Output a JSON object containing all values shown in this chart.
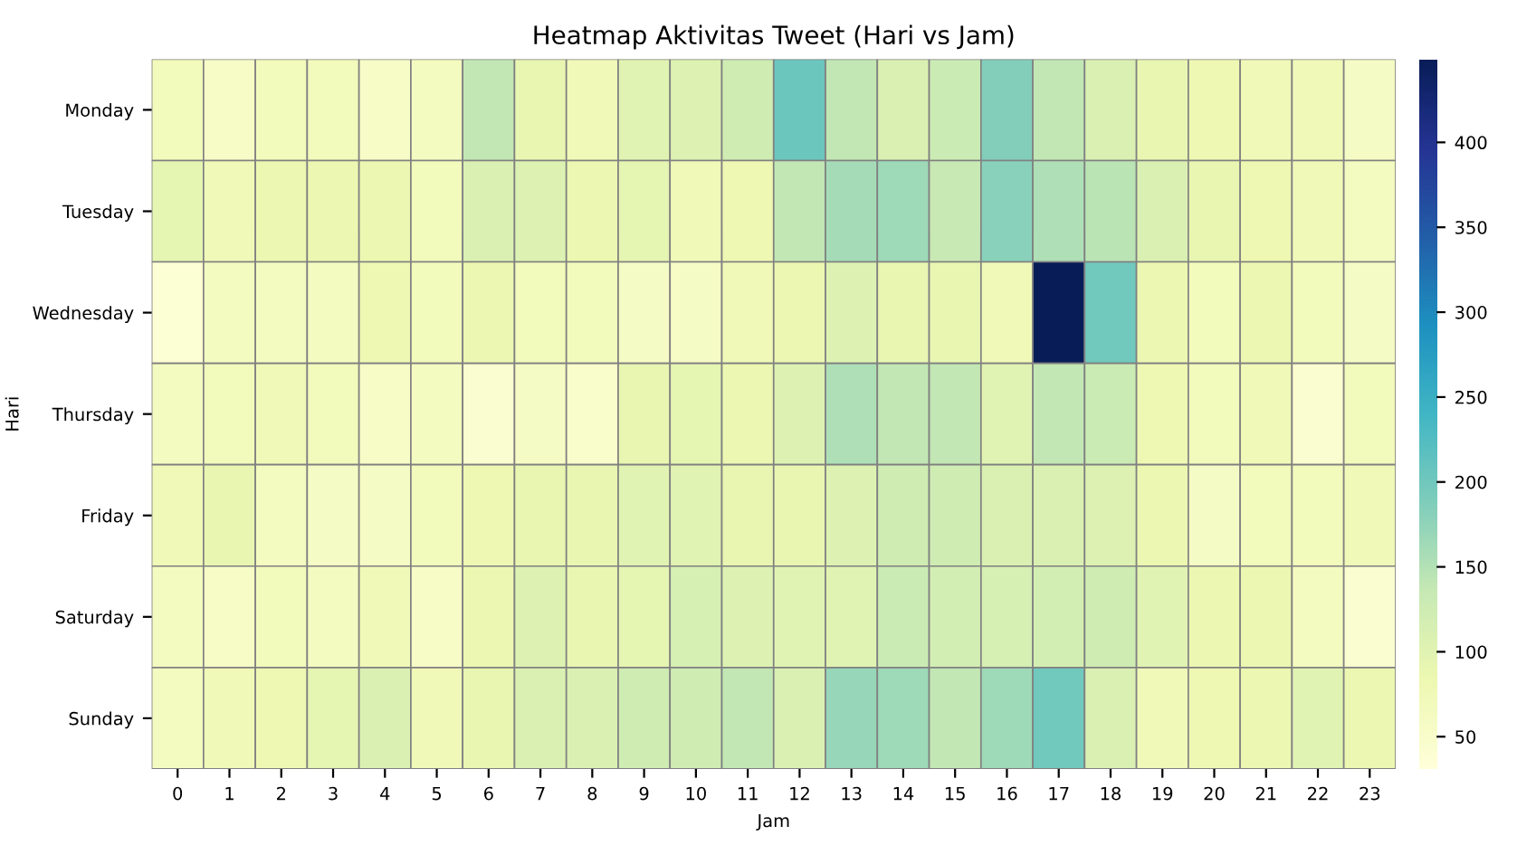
{
  "chart_data": {
    "type": "heatmap",
    "title": "Heatmap Aktivitas Tweet (Hari vs Jam)",
    "xlabel": "Jam",
    "ylabel": "Hari",
    "categories": [
      "0",
      "1",
      "2",
      "3",
      "4",
      "5",
      "6",
      "7",
      "8",
      "9",
      "10",
      "11",
      "12",
      "13",
      "14",
      "15",
      "16",
      "17",
      "18",
      "19",
      "20",
      "21",
      "22",
      "23"
    ],
    "y_categories": [
      "Monday",
      "Tuesday",
      "Wednesday",
      "Thursday",
      "Friday",
      "Saturday",
      "Sunday"
    ],
    "cells": [
      [
        70,
        55,
        70,
        70,
        55,
        65,
        140,
        90,
        75,
        100,
        105,
        125,
        205,
        140,
        110,
        130,
        185,
        140,
        110,
        90,
        80,
        75,
        75,
        60
      ],
      [
        95,
        75,
        85,
        85,
        85,
        70,
        110,
        105,
        85,
        95,
        75,
        80,
        140,
        160,
        165,
        135,
        180,
        155,
        145,
        110,
        90,
        80,
        75,
        65
      ],
      [
        40,
        65,
        65,
        65,
        80,
        70,
        85,
        70,
        70,
        60,
        60,
        75,
        85,
        105,
        90,
        90,
        75,
        449,
        200,
        85,
        70,
        85,
        70,
        60
      ],
      [
        65,
        70,
        75,
        70,
        55,
        65,
        45,
        60,
        50,
        90,
        95,
        85,
        105,
        155,
        140,
        140,
        100,
        140,
        130,
        80,
        70,
        75,
        45,
        70
      ],
      [
        75,
        90,
        65,
        60,
        60,
        70,
        80,
        90,
        90,
        100,
        100,
        90,
        90,
        105,
        125,
        125,
        110,
        110,
        105,
        85,
        60,
        70,
        70,
        75
      ],
      [
        65,
        55,
        70,
        65,
        75,
        55,
        85,
        105,
        90,
        95,
        115,
        105,
        100,
        100,
        130,
        120,
        115,
        120,
        125,
        100,
        85,
        85,
        65,
        45
      ],
      [
        65,
        75,
        80,
        95,
        110,
        75,
        90,
        110,
        110,
        125,
        125,
        140,
        110,
        170,
        165,
        140,
        165,
        200,
        110,
        75,
        80,
        85,
        100,
        85
      ]
    ],
    "clim": [
      31,
      449
    ],
    "cticks": [
      50,
      100,
      150,
      200,
      250,
      300,
      350,
      400
    ]
  }
}
